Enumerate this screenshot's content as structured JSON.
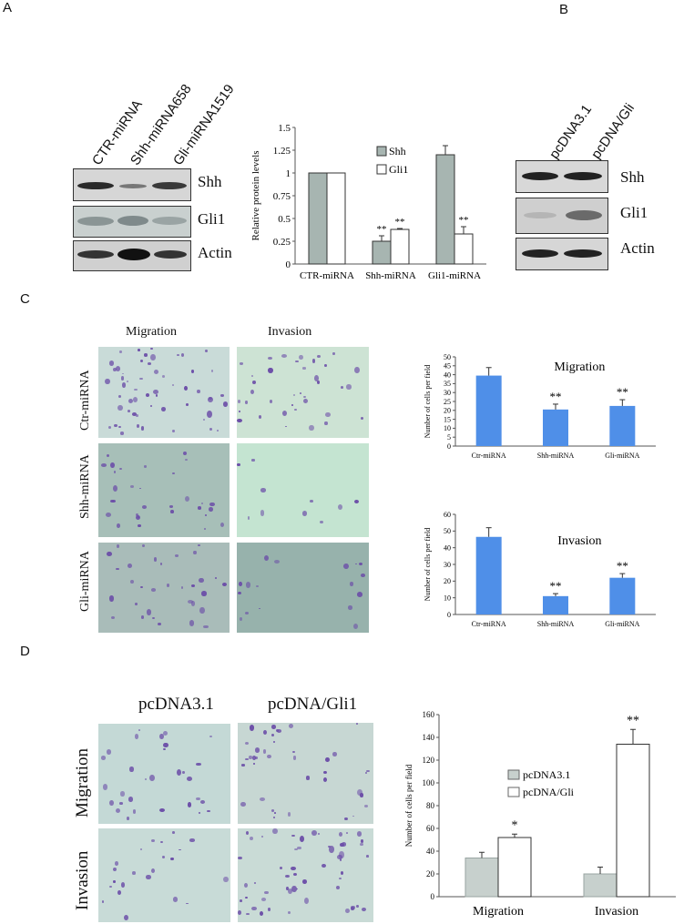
{
  "panels": {
    "A": "A",
    "B": "B",
    "C": "C",
    "D": "D"
  },
  "blotA": {
    "lanes": [
      "CTR-miRNA",
      "Shh-miRNA658",
      "Gli-miRNA1519"
    ],
    "rows": [
      "Shh",
      "Gli1",
      "Actin"
    ]
  },
  "blotB": {
    "lanes": [
      "pcDNA3.1",
      "pcDNA/Gli"
    ],
    "rows": [
      "Shh",
      "Gli1",
      "Actin"
    ]
  },
  "micrographsC": {
    "cols": [
      "Migration",
      "Invasion"
    ],
    "rows": [
      "Ctr-miRNA",
      "Shh-miRNA",
      "Gli-miRNA"
    ]
  },
  "micrographsD": {
    "cols": [
      "pcDNA3.1",
      "pcDNA/Gli1"
    ],
    "rows": [
      "Migration",
      "Invasion"
    ]
  },
  "colors": {
    "gray_bar": "#a7b5b1",
    "blue_bar": "#4f8fe8",
    "light_gray_bar": "#c7d0cd"
  },
  "chart_data": [
    {
      "type": "bar",
      "ylabel": "Relative protein levels",
      "categories": [
        "CTR-miRNA",
        "Shh-miRNA",
        "Gli1-miRNA"
      ],
      "series": [
        {
          "name": "Shh",
          "values": [
            1.0,
            0.25,
            1.2
          ],
          "errors": [
            0,
            0.06,
            0.1
          ]
        },
        {
          "name": "Gli1",
          "values": [
            1.0,
            0.38,
            0.33
          ],
          "errors": [
            0,
            0.01,
            0.08
          ]
        }
      ],
      "annotations": [
        {
          "category": "Shh-miRNA",
          "series": "Shh",
          "text": "**"
        },
        {
          "category": "Shh-miRNA",
          "series": "Gli1",
          "text": "**"
        },
        {
          "category": "Gli1-miRNA",
          "series": "Gli1",
          "text": "**"
        }
      ],
      "ylim": [
        0,
        1.5
      ],
      "yticks": [
        "0",
        "0.25",
        "0.5",
        "0.75",
        "1",
        "1.25",
        "1.5"
      ],
      "legend": "top-center"
    },
    {
      "type": "bar",
      "title": "Migration",
      "ylabel": "Number of cells per field",
      "categories": [
        "Ctr-miRNA",
        "Shh-miRNA",
        "Gli-miRNA"
      ],
      "values": [
        39.5,
        20.5,
        22.5
      ],
      "errors": [
        4.5,
        3,
        3.5
      ],
      "annotations": [
        "",
        "**",
        "**"
      ],
      "ylim": [
        0,
        50
      ],
      "yticks": [
        "0",
        "5",
        "10",
        "15",
        "20",
        "25",
        "30",
        "35",
        "40",
        "45",
        "50"
      ]
    },
    {
      "type": "bar",
      "title": "Invasion",
      "ylabel": "Number of cells per field",
      "categories": [
        "Ctr-miRNA",
        "Shh-miRNA",
        "Gli-miRNA"
      ],
      "values": [
        46.5,
        11,
        22
      ],
      "errors": [
        5.5,
        1.5,
        2.5
      ],
      "annotations": [
        "",
        "**",
        "**"
      ],
      "ylim": [
        0,
        60
      ],
      "yticks": [
        "0",
        "10",
        "20",
        "30",
        "40",
        "50",
        "60"
      ]
    },
    {
      "type": "bar",
      "ylabel": "Number of cells per field",
      "categories": [
        "Migration",
        "Invasion"
      ],
      "series": [
        {
          "name": "pcDNA3.1",
          "values": [
            34,
            20
          ],
          "errors": [
            5,
            6
          ]
        },
        {
          "name": "pcDNA/Gli",
          "values": [
            52,
            134
          ],
          "errors": [
            3,
            13
          ]
        }
      ],
      "annotations": [
        {
          "category": "Migration",
          "series": "pcDNA/Gli",
          "text": "*"
        },
        {
          "category": "Invasion",
          "series": "pcDNA/Gli",
          "text": "**"
        }
      ],
      "ylim": [
        0,
        160
      ],
      "yticks": [
        "0",
        "20",
        "40",
        "60",
        "80",
        "100",
        "120",
        "140",
        "160"
      ],
      "legend": "center"
    }
  ]
}
